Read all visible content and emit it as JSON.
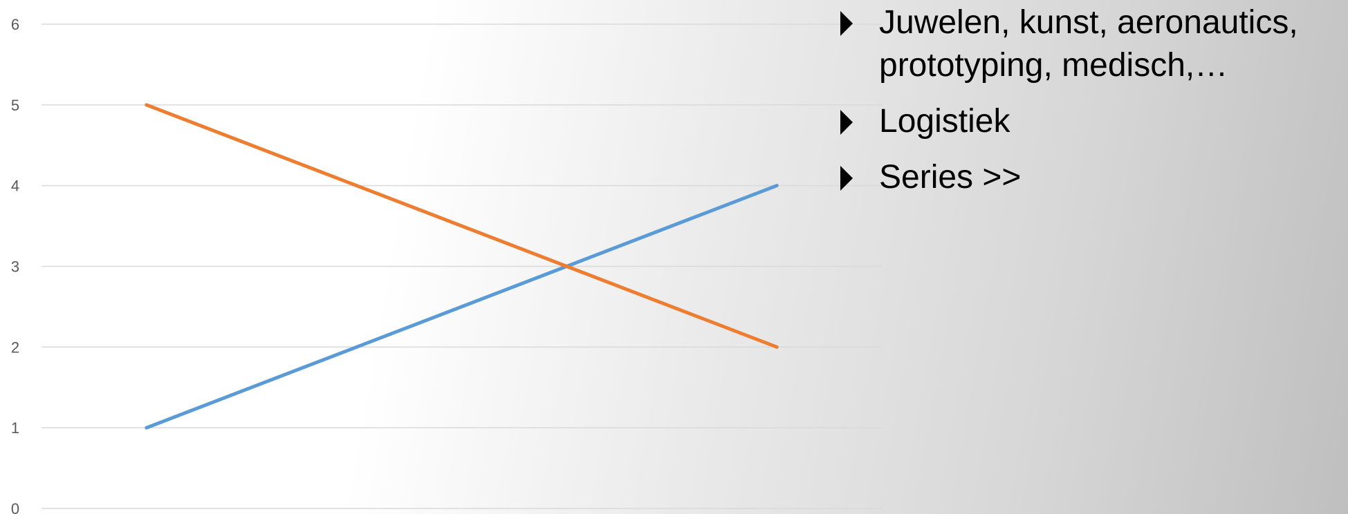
{
  "chart_data": {
    "type": "line",
    "categories": [
      "",
      "",
      "",
      ""
    ],
    "series": [
      {
        "color": "#5b9bd5",
        "values": [
          1,
          2,
          3,
          4
        ]
      },
      {
        "color": "#ed7d31",
        "values": [
          5,
          4,
          3,
          2
        ]
      }
    ],
    "ylim": [
      0,
      6
    ],
    "yticks": [
      "0",
      "1",
      "2",
      "3",
      "4",
      "5",
      "6"
    ],
    "grid": true,
    "gridline_color": "#d9d9d9",
    "title": "",
    "xlabel": "",
    "ylabel": ""
  },
  "bullets": [
    {
      "icon": "triangle-right-icon",
      "text": "Juwelen, kunst, aeronautics, prototyping, medisch,…"
    },
    {
      "icon": "triangle-right-icon",
      "text": "Logistiek"
    },
    {
      "icon": "triangle-right-icon",
      "text": "Series >>"
    }
  ]
}
